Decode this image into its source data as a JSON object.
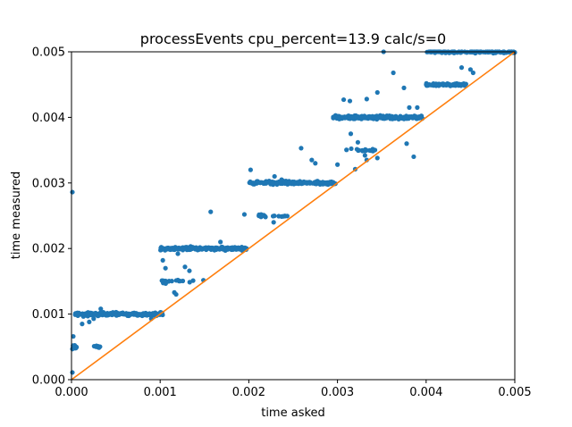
{
  "chart_data": {
    "type": "scatter",
    "title": "processEvents cpu_percent=13.9 calc/s=0",
    "xlabel": "time asked",
    "ylabel": "time measured",
    "xlim": [
      0,
      0.005
    ],
    "ylim": [
      0,
      0.005
    ],
    "xticks": [
      "0.000",
      "0.001",
      "0.002",
      "0.003",
      "0.004",
      "0.005"
    ],
    "yticks": [
      "0.000",
      "0.001",
      "0.002",
      "0.003",
      "0.004",
      "0.005"
    ],
    "grid": false,
    "legend": "none",
    "colors": {
      "scatter": "#1f77b4",
      "reference": "#ff7f0e"
    },
    "reference_line": {
      "x": [
        0,
        0.005
      ],
      "y": [
        0,
        0.005
      ]
    },
    "clusters": [
      {
        "x": [
          4e-05,
          0.00103
        ],
        "y": 0.001,
        "n": 190,
        "jitter": 1.2e-05
      },
      {
        "x": [
          0.00012,
          0.00019
        ],
        "y": 0.00098,
        "n": 10,
        "jitter": 3e-05
      },
      {
        "x": [
          1e-05,
          6e-05
        ],
        "y": 0.0005,
        "n": 14,
        "jitter": 2e-05
      },
      {
        "x": [
          0.00025,
          0.00036
        ],
        "y": 0.0005,
        "n": 10,
        "jitter": 8e-06
      },
      {
        "x": [
          0.001,
          0.00198
        ],
        "y": 0.002,
        "n": 190,
        "jitter": 1.2e-05
      },
      {
        "x": [
          0.00102,
          0.0011
        ],
        "y": 0.0015,
        "n": 6,
        "jitter": 2e-05
      },
      {
        "x": [
          0.0011,
          0.00149
        ],
        "y": 0.0015,
        "n": 9,
        "jitter": 1e-05
      },
      {
        "x": [
          0.002,
          0.00298
        ],
        "y": 0.003,
        "n": 190,
        "jitter": 1.2e-05
      },
      {
        "x": [
          0.00205,
          0.00245
        ],
        "y": 0.0025,
        "n": 18,
        "jitter": 1e-05
      },
      {
        "x": [
          0.00295,
          0.00396
        ],
        "y": 0.004,
        "n": 190,
        "jitter": 1.2e-05
      },
      {
        "x": [
          0.003,
          0.00345
        ],
        "y": 0.0035,
        "n": 18,
        "jitter": 1e-05
      },
      {
        "x": [
          0.004,
          0.00445
        ],
        "y": 0.0045,
        "n": 70,
        "jitter": 1e-05
      },
      {
        "x": [
          0.004,
          0.005
        ],
        "y": 0.005,
        "n": 110,
        "jitter": 1e-05
      }
    ],
    "points": [
      [
        1e-05,
        0.00286
      ],
      [
        2e-05,
        0.00066
      ],
      [
        1e-05,
        0.00011
      ],
      [
        0.00033,
        0.00108
      ],
      [
        0.00025,
        0.00093
      ],
      [
        0.00012,
        0.00085
      ],
      [
        0.0002,
        0.00088
      ],
      [
        0.0009,
        0.00093
      ],
      [
        0.0012,
        0.00152
      ],
      [
        0.00133,
        0.00166
      ],
      [
        0.00128,
        0.00172
      ],
      [
        0.00103,
        0.00182
      ],
      [
        0.00106,
        0.0017
      ],
      [
        0.00116,
        0.00133
      ],
      [
        0.00118,
        0.0013
      ],
      [
        0.00157,
        0.00256
      ],
      [
        0.00168,
        0.0021
      ],
      [
        0.0012,
        0.00192
      ],
      [
        0.00202,
        0.0032
      ],
      [
        0.00229,
        0.0031
      ],
      [
        0.00195,
        0.00252
      ],
      [
        0.00214,
        0.0025
      ],
      [
        0.00237,
        0.00305
      ],
      [
        0.00259,
        0.00353
      ],
      [
        0.00271,
        0.00335
      ],
      [
        0.00275,
        0.0033
      ],
      [
        0.003,
        0.00328
      ],
      [
        0.00228,
        0.0024
      ],
      [
        0.00315,
        0.00375
      ],
      [
        0.00314,
        0.00425
      ],
      [
        0.00333,
        0.00428
      ],
      [
        0.00307,
        0.00427
      ],
      [
        0.00323,
        0.00362
      ],
      [
        0.00331,
        0.00342
      ],
      [
        0.00345,
        0.00338
      ],
      [
        0.0032,
        0.00321
      ],
      [
        0.00352,
        0.005
      ],
      [
        0.00363,
        0.00468
      ],
      [
        0.00345,
        0.00438
      ],
      [
        0.00375,
        0.00445
      ],
      [
        0.00381,
        0.00415
      ],
      [
        0.0039,
        0.00415
      ],
      [
        0.0044,
        0.00476
      ],
      [
        0.0045,
        0.00473
      ],
      [
        0.00453,
        0.00468
      ],
      [
        0.00378,
        0.0036
      ],
      [
        0.00333,
        0.00335
      ],
      [
        0.00386,
        0.0034
      ],
      [
        0.00437,
        0.0051
      ]
    ]
  }
}
